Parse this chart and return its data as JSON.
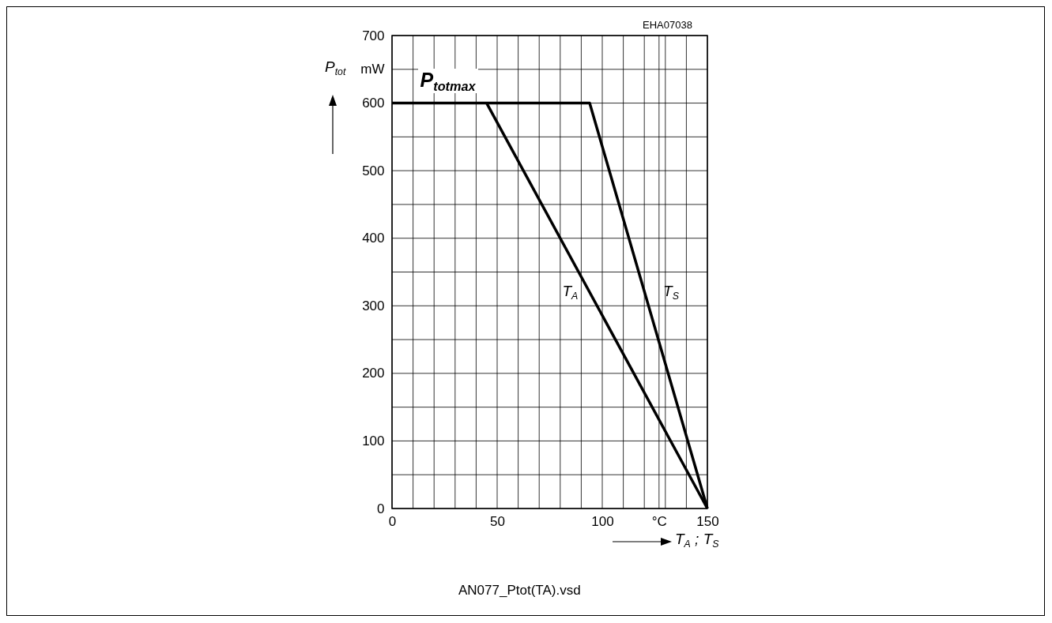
{
  "chart_data": {
    "type": "line",
    "xlabel": "T$_{A}$ ; T$_{S}$",
    "ylabel": "P$_{tot}$",
    "annotations": [
      {
        "text": "P$_{totmax}$",
        "x": 10,
        "y": 600
      },
      "EHA07038",
      "AN077_Ptot(TA).vsd"
    ],
    "series": [
      {
        "name": "T$_{A}$",
        "color": "#000000",
        "x": [
          45,
          150
        ],
        "values": [
          600,
          0
        ]
      },
      {
        "name": "T$_{S}$",
        "color": "#000000",
        "x": [
          0,
          94,
          150
        ],
        "values": [
          600,
          600,
          0
        ]
      }
    ],
    "xlim": [
      0,
      150
    ],
    "ylim": [
      0,
      700
    ],
    "xticks": [
      0,
      {
        "value": 10,
        "label": null
      },
      {
        "value": 20,
        "label": null
      },
      {
        "value": 30,
        "label": null
      },
      {
        "value": 40,
        "label": null
      },
      50,
      {
        "value": 60,
        "label": null
      },
      {
        "value": 70,
        "label": null
      },
      {
        "value": 80,
        "label": null
      },
      {
        "value": 90,
        "label": null
      },
      100,
      {
        "value": 110,
        "label": null
      },
      {
        "value": 120,
        "label": null
      },
      {
        "value": 127,
        "label": "°C"
      },
      {
        "value": 130,
        "label": null
      },
      {
        "value": 140,
        "label": null
      },
      150
    ],
    "yticks": [
      0,
      {
        "value": 50,
        "label": null
      },
      100,
      {
        "value": 150,
        "label": null
      },
      200,
      {
        "value": 250,
        "label": null
      },
      300,
      {
        "value": 350,
        "label": null
      },
      400,
      {
        "value": 450,
        "label": null
      },
      500,
      {
        "value": 550,
        "label": null
      },
      600,
      {
        "value": 650,
        "label": "mW"
      },
      700
    ],
    "grid": true,
    "legend": false,
    "marker": "none",
    "line_style": "solid"
  }
}
